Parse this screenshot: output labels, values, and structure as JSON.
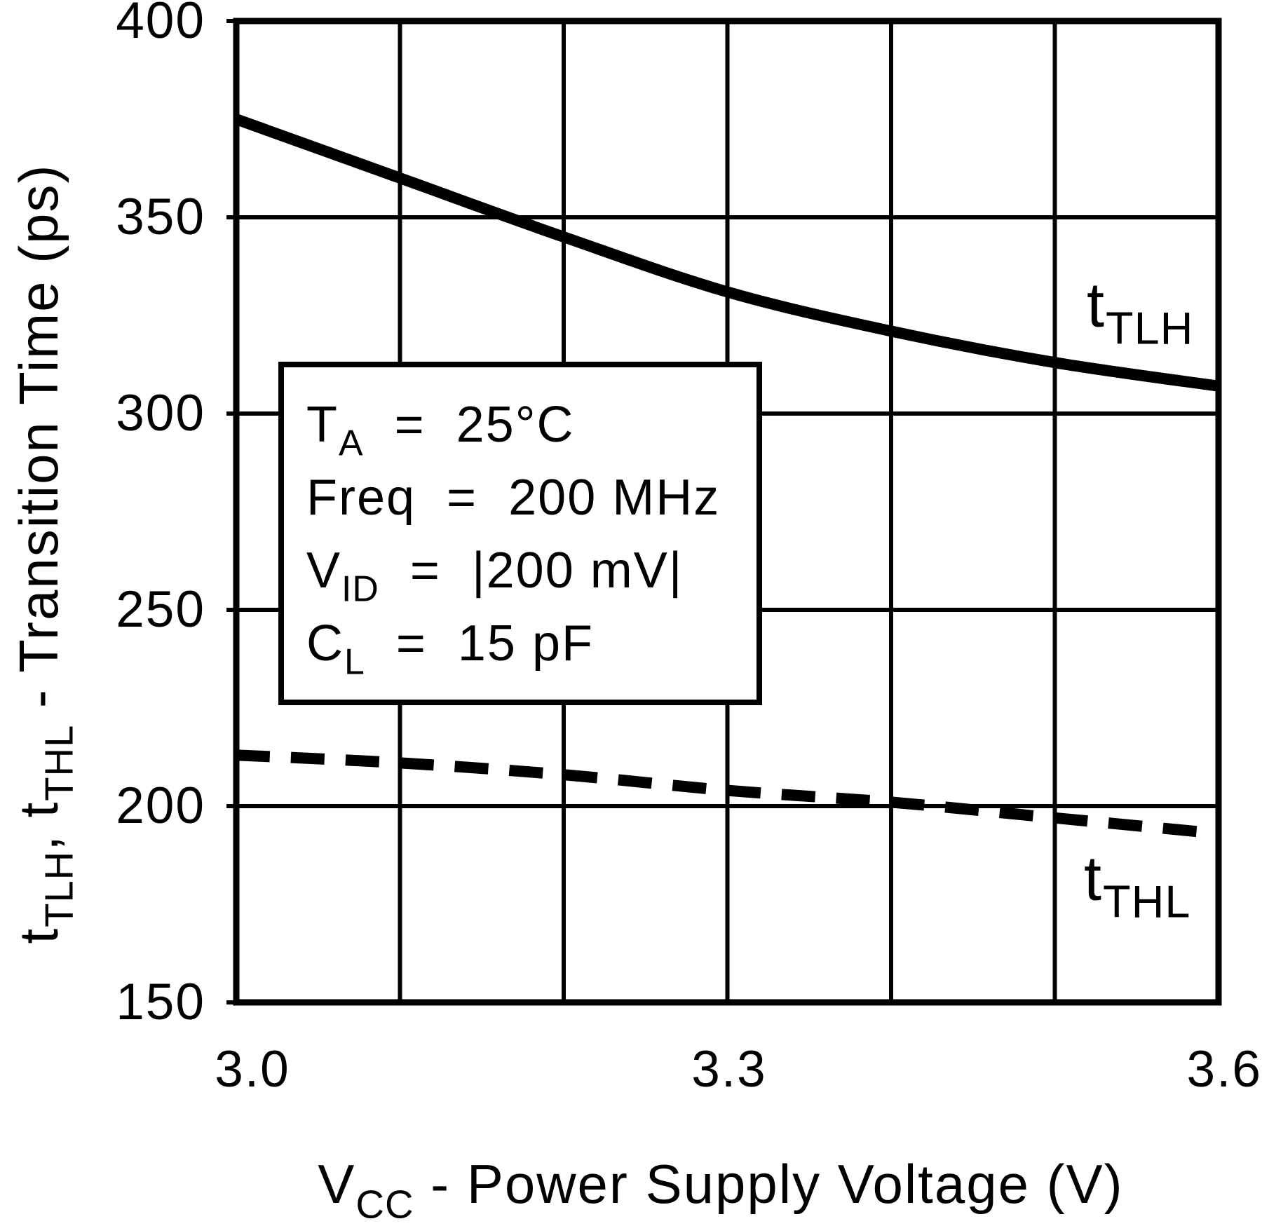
{
  "chart_data": {
    "type": "line",
    "title": "",
    "xlabel": "VCC - Power Supply Voltage (V)",
    "ylabel": "tTLH, tTHL - Transition Time (ps)",
    "xlim": [
      3.0,
      3.6
    ],
    "ylim": [
      150,
      400
    ],
    "grid": "on",
    "x_gridlines": [
      3.0,
      3.1,
      3.2,
      3.3,
      3.4,
      3.5,
      3.6
    ],
    "y_gridlines": [
      150,
      200,
      250,
      300,
      350,
      400
    ],
    "x_tick_labels": [
      "3.0",
      "3.3",
      "3.6"
    ],
    "y_tick_labels": [
      "400",
      "350",
      "300",
      "250",
      "200",
      "150"
    ],
    "x": [
      3.0,
      3.1,
      3.2,
      3.3,
      3.4,
      3.5,
      3.6
    ],
    "series": [
      {
        "name": "tTLH",
        "style": "solid",
        "values": [
          375,
          360,
          345,
          331,
          321,
          313,
          307
        ]
      },
      {
        "name": "tTHL",
        "style": "dashed",
        "values": [
          213,
          211,
          208,
          204,
          201,
          197,
          193
        ]
      }
    ],
    "conditions": [
      "TA = 25°C",
      "Freq = 200 MHz",
      "VID = |200 mV|",
      "CL = 15 pF"
    ],
    "line_color": "#000000",
    "background": "#ffffff"
  },
  "y_axis": {
    "title": {
      "p1": "t",
      "s1": "TLH",
      "p2": ", t",
      "s2": "THL",
      "p3": " - Transition Time (ps)"
    }
  },
  "x_axis": {
    "title": {
      "p1": "V",
      "s1": "CC",
      "p2": " - Power Supply Voltage (V)"
    }
  },
  "curve_labels": [
    {
      "base": "t",
      "sub": "TLH"
    },
    {
      "base": "t",
      "sub": "THL"
    }
  ],
  "annotation_box": {
    "lines": [
      {
        "base": "T",
        "sub": "A",
        "rest": "  =  25°C"
      },
      {
        "base": "Freq",
        "sub": "",
        "rest": "  =  200 MHz"
      },
      {
        "base": "V",
        "sub": "ID",
        "rest": "  =  |200 mV|"
      },
      {
        "base": "C",
        "sub": "L",
        "rest": "  =  15 pF"
      }
    ]
  }
}
